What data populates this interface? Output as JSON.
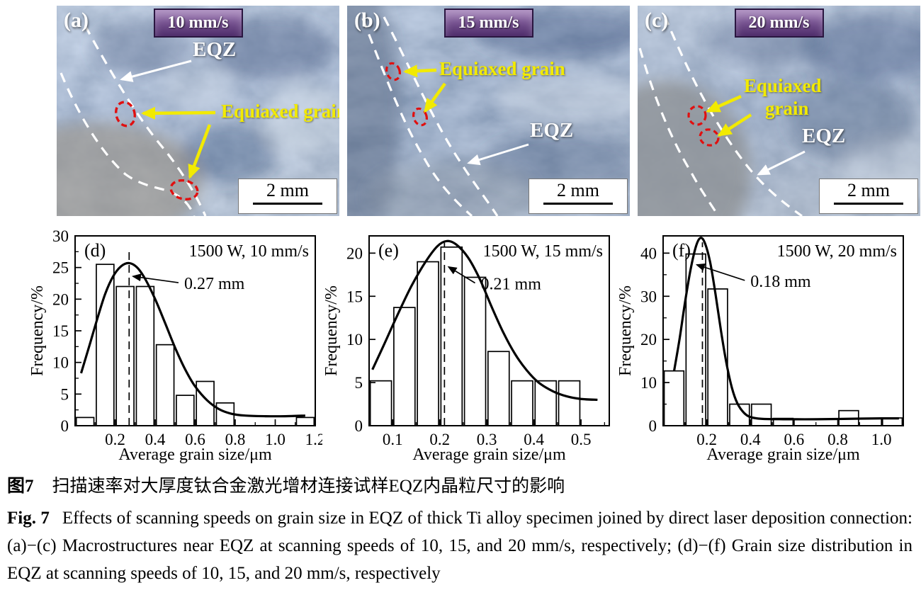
{
  "figure": {
    "photos": [
      {
        "panel": "(a)",
        "speed": "10 mm/s",
        "eqz": "EQZ",
        "grain1": "Equiaxed grain",
        "grain2": "",
        "scale": "2 mm"
      },
      {
        "panel": "(b)",
        "speed": "15 mm/s",
        "eqz": "EQZ",
        "grain1": "Equiaxed grain",
        "grain2": "",
        "scale": "2 mm"
      },
      {
        "panel": "(c)",
        "speed": "20 mm/s",
        "eqz": "EQZ",
        "grain1": "Equiaxed",
        "grain2": "grain",
        "scale": "2 mm"
      }
    ],
    "colors": {
      "badge_top": "#9a74b2",
      "badge_bottom": "#4f2d6b",
      "badge_border": "#2a1640",
      "annotation_yellow": "#f2ea00",
      "annotation_red": "#e01010",
      "annotation_white": "#ffffff",
      "micrograph_base": "#8ea4c0"
    }
  },
  "chart_data": [
    {
      "type": "bar",
      "panel": "(d)",
      "condition": "1500 W, 10 mm/s",
      "xlabel": "Average grain size/μm",
      "ylabel": "Frequency/%",
      "xlim": [
        0,
        1.2
      ],
      "ylim": [
        0,
        30
      ],
      "xticks": [
        0.2,
        0.4,
        0.6,
        0.8,
        1.0,
        1.2
      ],
      "x_minor": 0.1,
      "yticks": [
        0,
        5,
        10,
        15,
        20,
        25,
        30
      ],
      "y_minor": 2.5,
      "bar_width": 0.088,
      "bars": [
        {
          "x": 0.05,
          "h": 1.3
        },
        {
          "x": 0.15,
          "h": 25.5
        },
        {
          "x": 0.25,
          "h": 22
        },
        {
          "x": 0.35,
          "h": 22
        },
        {
          "x": 0.45,
          "h": 12.8
        },
        {
          "x": 0.55,
          "h": 4.8
        },
        {
          "x": 0.65,
          "h": 7
        },
        {
          "x": 0.75,
          "h": 3.6
        },
        {
          "x": 1.15,
          "h": 1.3
        }
      ],
      "curve": [
        [
          0.03,
          8.3
        ],
        [
          0.07,
          12.5
        ],
        [
          0.11,
          16.8
        ],
        [
          0.15,
          20.8
        ],
        [
          0.19,
          23.6
        ],
        [
          0.23,
          25.2
        ],
        [
          0.27,
          25.7
        ],
        [
          0.31,
          25.0
        ],
        [
          0.35,
          23.2
        ],
        [
          0.4,
          20.0
        ],
        [
          0.45,
          16.2
        ],
        [
          0.5,
          12.3
        ],
        [
          0.55,
          8.9
        ],
        [
          0.6,
          6.2
        ],
        [
          0.66,
          4.0
        ],
        [
          0.72,
          2.6
        ],
        [
          0.78,
          1.9
        ],
        [
          0.85,
          1.6
        ],
        [
          0.95,
          1.5
        ],
        [
          1.05,
          1.5
        ],
        [
          1.15,
          1.6
        ]
      ],
      "mean": {
        "x": 0.27,
        "top": 28,
        "label": "0.27 mm",
        "text_at": [
          0.545,
          21.6
        ],
        "arrow_to": [
          0.29,
          23.6
        ]
      }
    },
    {
      "type": "bar",
      "panel": "(e)",
      "condition": "1500 W, 15 mm/s",
      "xlabel": "Average grain size/μm",
      "ylabel": "Frequency/%",
      "xlim": [
        0.05,
        0.56
      ],
      "ylim": [
        0,
        22
      ],
      "xticks": [
        0.1,
        0.2,
        0.3,
        0.4,
        0.5
      ],
      "x_minor": 0.05,
      "yticks": [
        0,
        5,
        10,
        15,
        20
      ],
      "y_minor": null,
      "bar_width": 0.045,
      "bars": [
        {
          "x": 0.075,
          "h": 5.2
        },
        {
          "x": 0.125,
          "h": 13.7
        },
        {
          "x": 0.175,
          "h": 19.0
        },
        {
          "x": 0.225,
          "h": 20.7
        },
        {
          "x": 0.275,
          "h": 17.2
        },
        {
          "x": 0.325,
          "h": 8.6
        },
        {
          "x": 0.375,
          "h": 5.2
        },
        {
          "x": 0.425,
          "h": 5.2
        },
        {
          "x": 0.475,
          "h": 5.2
        }
      ],
      "curve": [
        [
          0.057,
          6.5
        ],
        [
          0.08,
          9.2
        ],
        [
          0.11,
          12.8
        ],
        [
          0.14,
          16.2
        ],
        [
          0.17,
          19.0
        ],
        [
          0.195,
          20.8
        ],
        [
          0.215,
          21.4
        ],
        [
          0.235,
          21.0
        ],
        [
          0.26,
          19.5
        ],
        [
          0.285,
          17.0
        ],
        [
          0.31,
          13.8
        ],
        [
          0.335,
          10.8
        ],
        [
          0.36,
          8.3
        ],
        [
          0.385,
          6.4
        ],
        [
          0.41,
          5.0
        ],
        [
          0.44,
          4.0
        ],
        [
          0.47,
          3.4
        ],
        [
          0.5,
          3.1
        ],
        [
          0.535,
          3.0
        ]
      ],
      "mean": {
        "x": 0.21,
        "top": 21.2,
        "label": "0.21 mm",
        "text_at": [
          0.287,
          15.8
        ],
        "arrow_to": [
          0.219,
          18.4
        ]
      }
    },
    {
      "type": "bar",
      "panel": "(f)",
      "condition": "1500 W, 20 mm/s",
      "xlabel": "Average grain size/μm",
      "ylabel": "Frequency/%",
      "xlim": [
        0,
        1.1
      ],
      "ylim": [
        0,
        44
      ],
      "xticks": [
        0.2,
        0.4,
        0.6,
        0.8,
        1.0
      ],
      "x_minor": 0.1,
      "yticks": [
        0,
        10,
        20,
        30,
        40
      ],
      "y_minor": 5,
      "bar_width": 0.09,
      "bars": [
        {
          "x": 0.05,
          "h": 12.7
        },
        {
          "x": 0.15,
          "h": 39.8
        },
        {
          "x": 0.25,
          "h": 31.7
        },
        {
          "x": 0.35,
          "h": 5.0
        },
        {
          "x": 0.45,
          "h": 5.0
        },
        {
          "x": 0.55,
          "h": 1.7
        },
        {
          "x": 0.85,
          "h": 3.5
        },
        {
          "x": 1.05,
          "h": 1.8
        }
      ],
      "curve": [
        [
          0.05,
          12.6
        ],
        [
          0.075,
          20.0
        ],
        [
          0.1,
          28.5
        ],
        [
          0.125,
          36.0
        ],
        [
          0.15,
          41.5
        ],
        [
          0.17,
          43.5
        ],
        [
          0.19,
          42.5
        ],
        [
          0.215,
          38.0
        ],
        [
          0.24,
          30.5
        ],
        [
          0.265,
          22.0
        ],
        [
          0.29,
          14.5
        ],
        [
          0.315,
          8.8
        ],
        [
          0.34,
          5.2
        ],
        [
          0.37,
          3.0
        ],
        [
          0.4,
          2.0
        ],
        [
          0.45,
          1.6
        ],
        [
          0.55,
          1.5
        ],
        [
          0.7,
          1.5
        ],
        [
          0.85,
          1.6
        ],
        [
          1.0,
          1.7
        ],
        [
          1.08,
          1.7
        ]
      ],
      "mean": {
        "x": 0.18,
        "top": 42.5,
        "label": "0.18 mm",
        "text_at": [
          0.4,
          32.2
        ],
        "arrow_to": [
          0.155,
          37.3
        ]
      }
    }
  ],
  "caption": {
    "cn_fig": "图7",
    "cn_text": "扫描速率对大厚度钛合金激光增材连接试样EQZ内晶粒尺寸的影响",
    "en_fig": "Fig. 7",
    "en_text": "Effects of scanning speeds on grain size in EQZ of thick Ti alloy specimen joined by direct laser deposition connection: (a)−(c) Macrostructures near EQZ at scanning speeds of 10, 15, and 20 mm/s, respectively; (d)−(f) Grain size distribution in EQZ at scanning speeds of 10, 15, and 20 mm/s, respectively"
  }
}
